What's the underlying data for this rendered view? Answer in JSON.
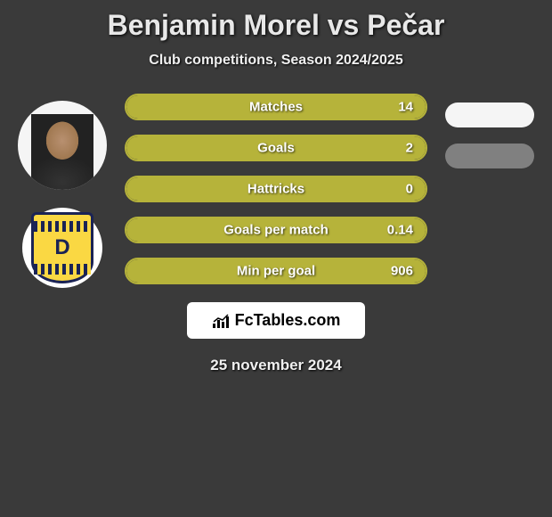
{
  "title": "Benjamin Morel vs Pečar",
  "subtitle": "Club competitions, Season 2024/2025",
  "colors": {
    "bar_border": "#b6b33a",
    "bar_fill": "#b6b33a",
    "pill1": "#f5f5f5",
    "pill2": "#808080",
    "background": "#3a3a3a"
  },
  "stats": [
    {
      "label": "Matches",
      "value": "14",
      "fill_pct": 100
    },
    {
      "label": "Goals",
      "value": "2",
      "fill_pct": 100
    },
    {
      "label": "Hattricks",
      "value": "0",
      "fill_pct": 100
    },
    {
      "label": "Goals per match",
      "value": "0.14",
      "fill_pct": 100
    },
    {
      "label": "Min per goal",
      "value": "906",
      "fill_pct": 100
    }
  ],
  "right_pills": [
    {
      "color": "#f5f5f5"
    },
    {
      "color": "#808080"
    }
  ],
  "logo_text": "FcTables.com",
  "date": "25 november 2024",
  "badge_letter": "D"
}
